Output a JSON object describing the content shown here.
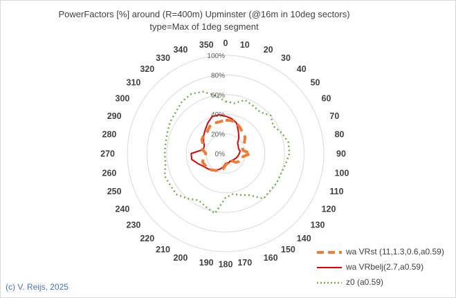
{
  "chart_data": {
    "type": "radar",
    "title": "PowerFactors [%] around (R=400m) Upminster (@16m in 10deg sectors)",
    "subtitle": "type=Max of 1deg segment",
    "categories": [
      "0",
      "10",
      "20",
      "30",
      "40",
      "50",
      "60",
      "70",
      "80",
      "90",
      "100",
      "110",
      "120",
      "130",
      "140",
      "150",
      "160",
      "170",
      "180",
      "190",
      "200",
      "210",
      "220",
      "230",
      "240",
      "250",
      "260",
      "270",
      "280",
      "290",
      "300",
      "310",
      "320",
      "330",
      "340",
      "350"
    ],
    "radial_ticks": [
      "0%",
      "20%",
      "40%",
      "60%",
      "80%",
      "100%"
    ],
    "rlim": [
      0,
      100
    ],
    "series": [
      {
        "name": "wa VRst (11,1.3,0.6,a0.59)",
        "color": "#ed7d31",
        "dash": "dashed",
        "values": [
          34,
          34,
          33,
          30,
          27,
          26,
          22,
          18,
          18,
          26,
          18,
          18,
          16,
          14,
          10,
          11,
          10,
          10,
          12,
          16,
          18,
          20,
          22,
          24,
          24,
          25,
          22,
          20,
          24,
          24,
          28,
          29,
          29,
          32,
          33,
          33
        ]
      },
      {
        "name": "wa VRbelj(2.7,a0.59)",
        "color": "#e00000",
        "dash": "solid",
        "values": [
          38,
          36,
          33,
          26,
          21,
          16,
          15,
          14,
          15,
          14,
          13,
          12,
          11,
          10,
          10,
          9,
          10,
          10,
          10,
          14,
          17,
          20,
          22,
          24,
          26,
          30,
          35,
          35,
          23,
          23,
          26,
          29,
          32,
          36,
          40,
          40
        ]
      },
      {
        "name": "z0 (a0.59)",
        "color": "#70ad47",
        "dash": "dotted",
        "values": [
          53,
          52,
          58,
          56,
          55,
          60,
          56,
          61,
          65,
          65,
          62,
          60,
          60,
          59,
          60,
          49,
          45,
          42,
          45,
          62,
          58,
          55,
          60,
          65,
          65,
          66,
          62,
          62,
          62,
          63,
          65,
          66,
          69,
          70,
          67,
          60
        ]
      }
    ],
    "legend_position": "bottom-right"
  },
  "credit": "(c) V. Reijs, 2025"
}
